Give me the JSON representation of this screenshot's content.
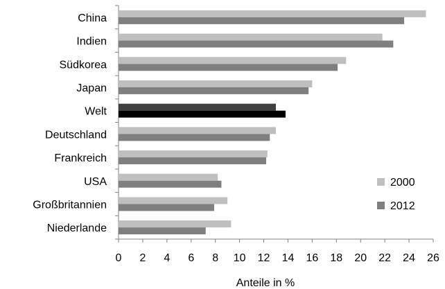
{
  "chart_data": {
    "type": "bar",
    "orientation": "horizontal",
    "categories": [
      "China",
      "Indien",
      "Südkorea",
      "Japan",
      "Welt",
      "Deutschland",
      "Frankreich",
      "USA",
      "Großbritannien",
      "Niederlande"
    ],
    "series": [
      {
        "name": "2000",
        "values": [
          25.4,
          21.8,
          18.8,
          16.0,
          13.0,
          13.0,
          12.3,
          8.2,
          9.0,
          9.3
        ],
        "color": "#bfbfbf"
      },
      {
        "name": "2012",
        "values": [
          23.6,
          22.7,
          18.1,
          15.7,
          13.8,
          12.5,
          12.2,
          8.5,
          7.9,
          7.2
        ],
        "color": "#7f7f7f"
      }
    ],
    "highlight": {
      "category": "Welt",
      "colors": {
        "2000": "#404040",
        "2012": "#000000"
      }
    },
    "xlabel": "Anteile in %",
    "ylabel": "",
    "xlim": [
      0,
      26
    ],
    "xticks": [
      0,
      2,
      4,
      6,
      8,
      10,
      12,
      14,
      16,
      18,
      20,
      22,
      24,
      26
    ],
    "grid": false,
    "legend": {
      "position": "right",
      "entries": [
        "2000",
        "2012"
      ]
    }
  }
}
